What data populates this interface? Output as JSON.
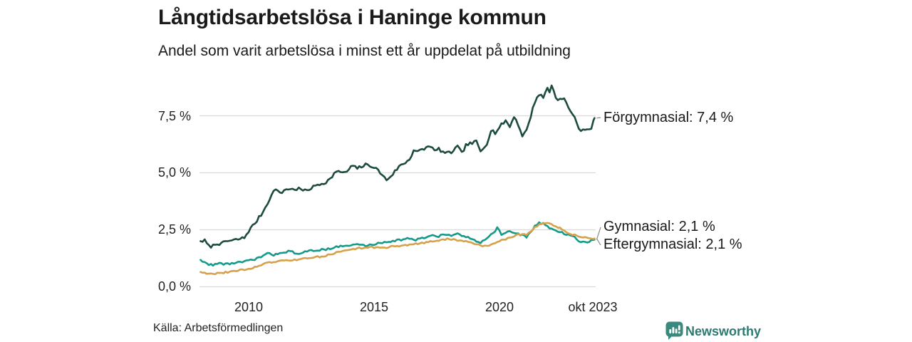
{
  "header": {
    "title": "Långtidsarbetslösa i Haninge kommun",
    "subtitle": "Andel som varit arbetslösa i minst ett år uppdelat på utbildning"
  },
  "footer": {
    "source": "Källa: Arbetsförmedlingen",
    "brand": "Newsworthy"
  },
  "colors": {
    "grid": "#dadada",
    "connector": "#8a8a8a",
    "text": "#1a1a1a",
    "brand_icon": "#3a897e",
    "brand_text": "#2c7a72"
  },
  "chart_data": {
    "type": "line",
    "title": "Långtidsarbetslösa i Haninge kommun",
    "subtitle": "Andel som varit arbetslösa i minst ett år uppdelat på utbildning",
    "unit": "%",
    "grid": true,
    "legend_position": "end-of-line-labels",
    "x_axis": {
      "range": [
        2008.08,
        2023.79
      ],
      "ticks": [
        {
          "label": "2010",
          "year": 2010
        },
        {
          "label": "2015",
          "year": 2015
        },
        {
          "label": "2020",
          "year": 2020
        },
        {
          "label": "okt 2023",
          "year": 2023.79
        }
      ]
    },
    "y_axis": {
      "range": [
        0,
        9.3
      ],
      "ticks": [
        {
          "label": "7,5 %",
          "value": 7.5
        },
        {
          "label": "5,0 %",
          "value": 5.0
        },
        {
          "label": "2,5 %",
          "value": 2.5
        },
        {
          "label": "0,0 %",
          "value": 0.0
        }
      ]
    },
    "series": [
      {
        "name": "Förgymnasial",
        "label": "Förgymnasial: 7,4 %",
        "last_value": 7.4,
        "color": "#1e4b40",
        "points": [
          [
            2008.08,
            2.0
          ],
          [
            2008.25,
            2.02
          ],
          [
            2008.42,
            1.76
          ],
          [
            2008.58,
            1.8
          ],
          [
            2008.75,
            1.92
          ],
          [
            2008.92,
            1.86
          ],
          [
            2009.08,
            2.0
          ],
          [
            2009.33,
            2.02
          ],
          [
            2009.58,
            2.08
          ],
          [
            2009.83,
            2.15
          ],
          [
            2010.0,
            2.45
          ],
          [
            2010.33,
            2.9
          ],
          [
            2010.58,
            3.3
          ],
          [
            2010.83,
            3.85
          ],
          [
            2011.08,
            4.33
          ],
          [
            2011.25,
            4.07
          ],
          [
            2011.5,
            4.3
          ],
          [
            2011.75,
            4.27
          ],
          [
            2012.0,
            4.3
          ],
          [
            2012.25,
            4.2
          ],
          [
            2012.5,
            4.33
          ],
          [
            2012.75,
            4.48
          ],
          [
            2013.0,
            4.55
          ],
          [
            2013.25,
            4.72
          ],
          [
            2013.42,
            5.0
          ],
          [
            2013.67,
            5.05
          ],
          [
            2013.92,
            5.0
          ],
          [
            2014.08,
            5.3
          ],
          [
            2014.33,
            5.2
          ],
          [
            2014.67,
            5.35
          ],
          [
            2014.92,
            5.3
          ],
          [
            2015.17,
            5.1
          ],
          [
            2015.5,
            4.68
          ],
          [
            2015.75,
            4.95
          ],
          [
            2016.0,
            5.28
          ],
          [
            2016.25,
            5.45
          ],
          [
            2016.42,
            5.6
          ],
          [
            2016.58,
            6.0
          ],
          [
            2016.75,
            5.92
          ],
          [
            2017.0,
            6.05
          ],
          [
            2017.25,
            6.2
          ],
          [
            2017.42,
            5.93
          ],
          [
            2017.58,
            6.05
          ],
          [
            2017.75,
            5.9
          ],
          [
            2017.92,
            5.85
          ],
          [
            2018.08,
            5.9
          ],
          [
            2018.33,
            6.15
          ],
          [
            2018.5,
            5.85
          ],
          [
            2018.67,
            6.22
          ],
          [
            2018.92,
            6.3
          ],
          [
            2019.08,
            6.37
          ],
          [
            2019.25,
            5.92
          ],
          [
            2019.5,
            6.3
          ],
          [
            2019.67,
            6.9
          ],
          [
            2019.83,
            6.75
          ],
          [
            2020.08,
            7.1
          ],
          [
            2020.25,
            7.3
          ],
          [
            2020.42,
            7.0
          ],
          [
            2020.58,
            7.5
          ],
          [
            2020.75,
            7.1
          ],
          [
            2020.92,
            6.62
          ],
          [
            2021.08,
            6.85
          ],
          [
            2021.25,
            7.5
          ],
          [
            2021.42,
            8.15
          ],
          [
            2021.58,
            8.45
          ],
          [
            2021.75,
            8.3
          ],
          [
            2021.92,
            8.75
          ],
          [
            2022.0,
            8.55
          ],
          [
            2022.08,
            8.85
          ],
          [
            2022.25,
            8.3
          ],
          [
            2022.42,
            8.2
          ],
          [
            2022.58,
            8.25
          ],
          [
            2022.75,
            7.85
          ],
          [
            2022.92,
            7.6
          ],
          [
            2023.08,
            7.15
          ],
          [
            2023.25,
            6.85
          ],
          [
            2023.42,
            6.95
          ],
          [
            2023.58,
            6.85
          ],
          [
            2023.67,
            6.95
          ],
          [
            2023.79,
            7.4
          ]
        ]
      },
      {
        "name": "Gymnasial",
        "label": "Gymnasial: 2,1 %",
        "last_value": 2.1,
        "color": "#159a8a",
        "points": [
          [
            2008.08,
            1.18
          ],
          [
            2008.33,
            1.0
          ],
          [
            2008.58,
            0.97
          ],
          [
            2008.83,
            1.02
          ],
          [
            2009.08,
            1.0
          ],
          [
            2009.5,
            1.05
          ],
          [
            2009.83,
            1.1
          ],
          [
            2010.08,
            1.15
          ],
          [
            2010.42,
            1.28
          ],
          [
            2010.75,
            1.45
          ],
          [
            2011.0,
            1.4
          ],
          [
            2011.33,
            1.52
          ],
          [
            2011.58,
            1.55
          ],
          [
            2011.83,
            1.5
          ],
          [
            2012.08,
            1.45
          ],
          [
            2012.33,
            1.55
          ],
          [
            2012.58,
            1.6
          ],
          [
            2013.0,
            1.63
          ],
          [
            2013.5,
            1.75
          ],
          [
            2014.0,
            1.8
          ],
          [
            2014.33,
            1.87
          ],
          [
            2014.67,
            1.8
          ],
          [
            2015.0,
            1.86
          ],
          [
            2015.33,
            1.95
          ],
          [
            2015.67,
            2.0
          ],
          [
            2016.0,
            2.05
          ],
          [
            2016.33,
            2.12
          ],
          [
            2016.67,
            2.05
          ],
          [
            2017.0,
            2.15
          ],
          [
            2017.33,
            2.27
          ],
          [
            2017.5,
            2.2
          ],
          [
            2017.83,
            2.3
          ],
          [
            2018.08,
            2.25
          ],
          [
            2018.33,
            2.3
          ],
          [
            2018.67,
            2.18
          ],
          [
            2018.92,
            2.1
          ],
          [
            2019.08,
            2.02
          ],
          [
            2019.25,
            1.95
          ],
          [
            2019.42,
            2.1
          ],
          [
            2019.58,
            2.2
          ],
          [
            2019.75,
            2.35
          ],
          [
            2019.92,
            2.6
          ],
          [
            2020.08,
            2.28
          ],
          [
            2020.25,
            2.38
          ],
          [
            2020.42,
            2.45
          ],
          [
            2020.58,
            2.35
          ],
          [
            2020.75,
            2.3
          ],
          [
            2020.92,
            2.25
          ],
          [
            2021.08,
            2.2
          ],
          [
            2021.25,
            2.42
          ],
          [
            2021.42,
            2.65
          ],
          [
            2021.58,
            2.8
          ],
          [
            2021.75,
            2.76
          ],
          [
            2021.92,
            2.65
          ],
          [
            2022.08,
            2.55
          ],
          [
            2022.33,
            2.45
          ],
          [
            2022.5,
            2.36
          ],
          [
            2022.75,
            2.3
          ],
          [
            2022.92,
            2.2
          ],
          [
            2023.08,
            2.1
          ],
          [
            2023.25,
            1.92
          ],
          [
            2023.42,
            1.97
          ],
          [
            2023.58,
            2.0
          ],
          [
            2023.79,
            2.07
          ]
        ]
      },
      {
        "name": "Eftergymnasial",
        "label": "Eftergymnasial: 2,1 %",
        "last_value": 2.1,
        "color": "#d5a14a",
        "points": [
          [
            2008.08,
            0.65
          ],
          [
            2008.33,
            0.6
          ],
          [
            2008.67,
            0.58
          ],
          [
            2009.0,
            0.62
          ],
          [
            2009.5,
            0.7
          ],
          [
            2010.0,
            0.78
          ],
          [
            2010.42,
            0.92
          ],
          [
            2010.75,
            1.05
          ],
          [
            2011.08,
            1.1
          ],
          [
            2011.5,
            1.15
          ],
          [
            2012.0,
            1.2
          ],
          [
            2012.5,
            1.27
          ],
          [
            2013.0,
            1.35
          ],
          [
            2013.5,
            1.5
          ],
          [
            2014.0,
            1.63
          ],
          [
            2014.5,
            1.7
          ],
          [
            2014.83,
            1.75
          ],
          [
            2015.17,
            1.7
          ],
          [
            2015.5,
            1.73
          ],
          [
            2016.0,
            1.8
          ],
          [
            2016.5,
            1.86
          ],
          [
            2017.0,
            1.92
          ],
          [
            2017.33,
            2.0
          ],
          [
            2017.67,
            2.05
          ],
          [
            2017.92,
            2.1
          ],
          [
            2018.25,
            2.05
          ],
          [
            2018.58,
            2.0
          ],
          [
            2018.83,
            1.95
          ],
          [
            2019.08,
            1.88
          ],
          [
            2019.33,
            1.76
          ],
          [
            2019.67,
            1.85
          ],
          [
            2019.92,
            2.0
          ],
          [
            2020.17,
            2.05
          ],
          [
            2020.5,
            2.2
          ],
          [
            2020.75,
            2.3
          ],
          [
            2020.92,
            2.3
          ],
          [
            2021.08,
            2.28
          ],
          [
            2021.25,
            2.42
          ],
          [
            2021.42,
            2.6
          ],
          [
            2021.58,
            2.74
          ],
          [
            2021.83,
            2.8
          ],
          [
            2022.0,
            2.76
          ],
          [
            2022.17,
            2.7
          ],
          [
            2022.42,
            2.56
          ],
          [
            2022.58,
            2.46
          ],
          [
            2022.83,
            2.3
          ],
          [
            2023.0,
            2.26
          ],
          [
            2023.17,
            2.2
          ],
          [
            2023.42,
            2.15
          ],
          [
            2023.67,
            2.14
          ],
          [
            2023.79,
            2.12
          ]
        ]
      }
    ]
  }
}
